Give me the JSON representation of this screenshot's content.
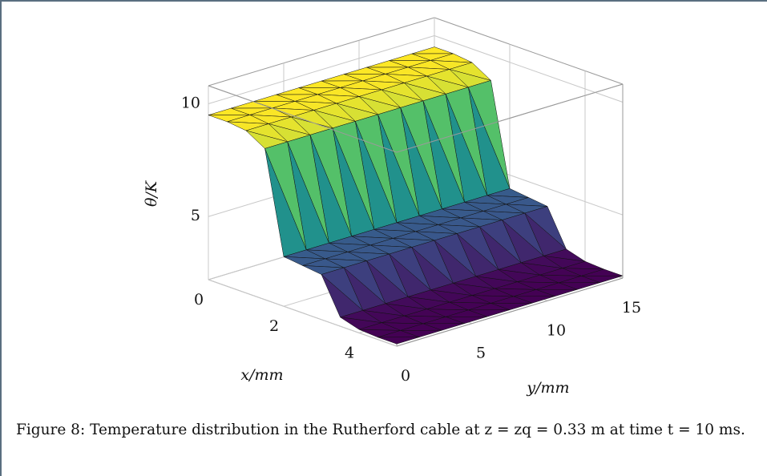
{
  "chart_data": {
    "type": "surface",
    "xlabel": "x/mm",
    "ylabel": "y/mm",
    "zlabel": "θ/K",
    "x": [
      0,
      0.5,
      1,
      1.5,
      2,
      2.5,
      3,
      3.5,
      4,
      4.5,
      5
    ],
    "y": [
      0,
      1.5,
      3,
      4.5,
      6,
      7.5,
      9,
      10.5,
      12,
      13.5,
      15
    ],
    "z": [
      [
        9.5,
        9.5,
        9.5,
        9.5,
        9.5,
        9.5,
        9.5,
        9.5,
        9.5,
        9.5,
        9.5
      ],
      [
        9.5,
        9.5,
        9.5,
        9.5,
        9.5,
        9.5,
        9.5,
        9.5,
        9.5,
        9.5,
        9.5
      ],
      [
        9.4,
        9.4,
        9.4,
        9.4,
        9.4,
        9.4,
        9.4,
        9.4,
        9.4,
        9.4,
        9.4
      ],
      [
        8.9,
        8.9,
        8.9,
        8.9,
        8.9,
        8.9,
        8.9,
        8.9,
        8.9,
        8.9,
        8.9
      ],
      [
        4.4,
        4.4,
        4.4,
        4.4,
        4.4,
        4.4,
        4.4,
        4.4,
        4.4,
        4.4,
        4.4
      ],
      [
        4.3,
        4.3,
        4.3,
        4.3,
        4.3,
        4.3,
        4.3,
        4.3,
        4.3,
        4.3,
        4.3
      ],
      [
        4.2,
        4.2,
        4.2,
        4.2,
        4.2,
        4.2,
        4.2,
        4.2,
        4.2,
        4.2,
        4.2
      ],
      [
        2.6,
        2.6,
        2.6,
        2.6,
        2.6,
        2.6,
        2.6,
        2.6,
        2.6,
        2.6,
        2.6
      ],
      [
        2.35,
        2.35,
        2.35,
        2.35,
        2.35,
        2.35,
        2.35,
        2.35,
        2.35,
        2.35,
        2.35
      ],
      [
        2.3,
        2.3,
        2.3,
        2.3,
        2.3,
        2.3,
        2.3,
        2.3,
        2.3,
        2.3,
        2.3
      ],
      [
        2.3,
        2.3,
        2.3,
        2.3,
        2.3,
        2.3,
        2.3,
        2.3,
        2.3,
        2.3,
        2.3
      ]
    ],
    "colormap": "viridis",
    "xlim": [
      0,
      5
    ],
    "ylim": [
      0,
      15
    ],
    "zlim": [
      2.2,
      10.8
    ],
    "xticks": [
      0,
      2,
      4
    ],
    "yticks": [
      0,
      5,
      10,
      15
    ],
    "zticks": [
      5,
      10
    ],
    "grid": true
  },
  "caption": "Figure 8: Temperature distribution in the Rutherford cable at z = zq = 0.33 m at time t = 10 ms."
}
